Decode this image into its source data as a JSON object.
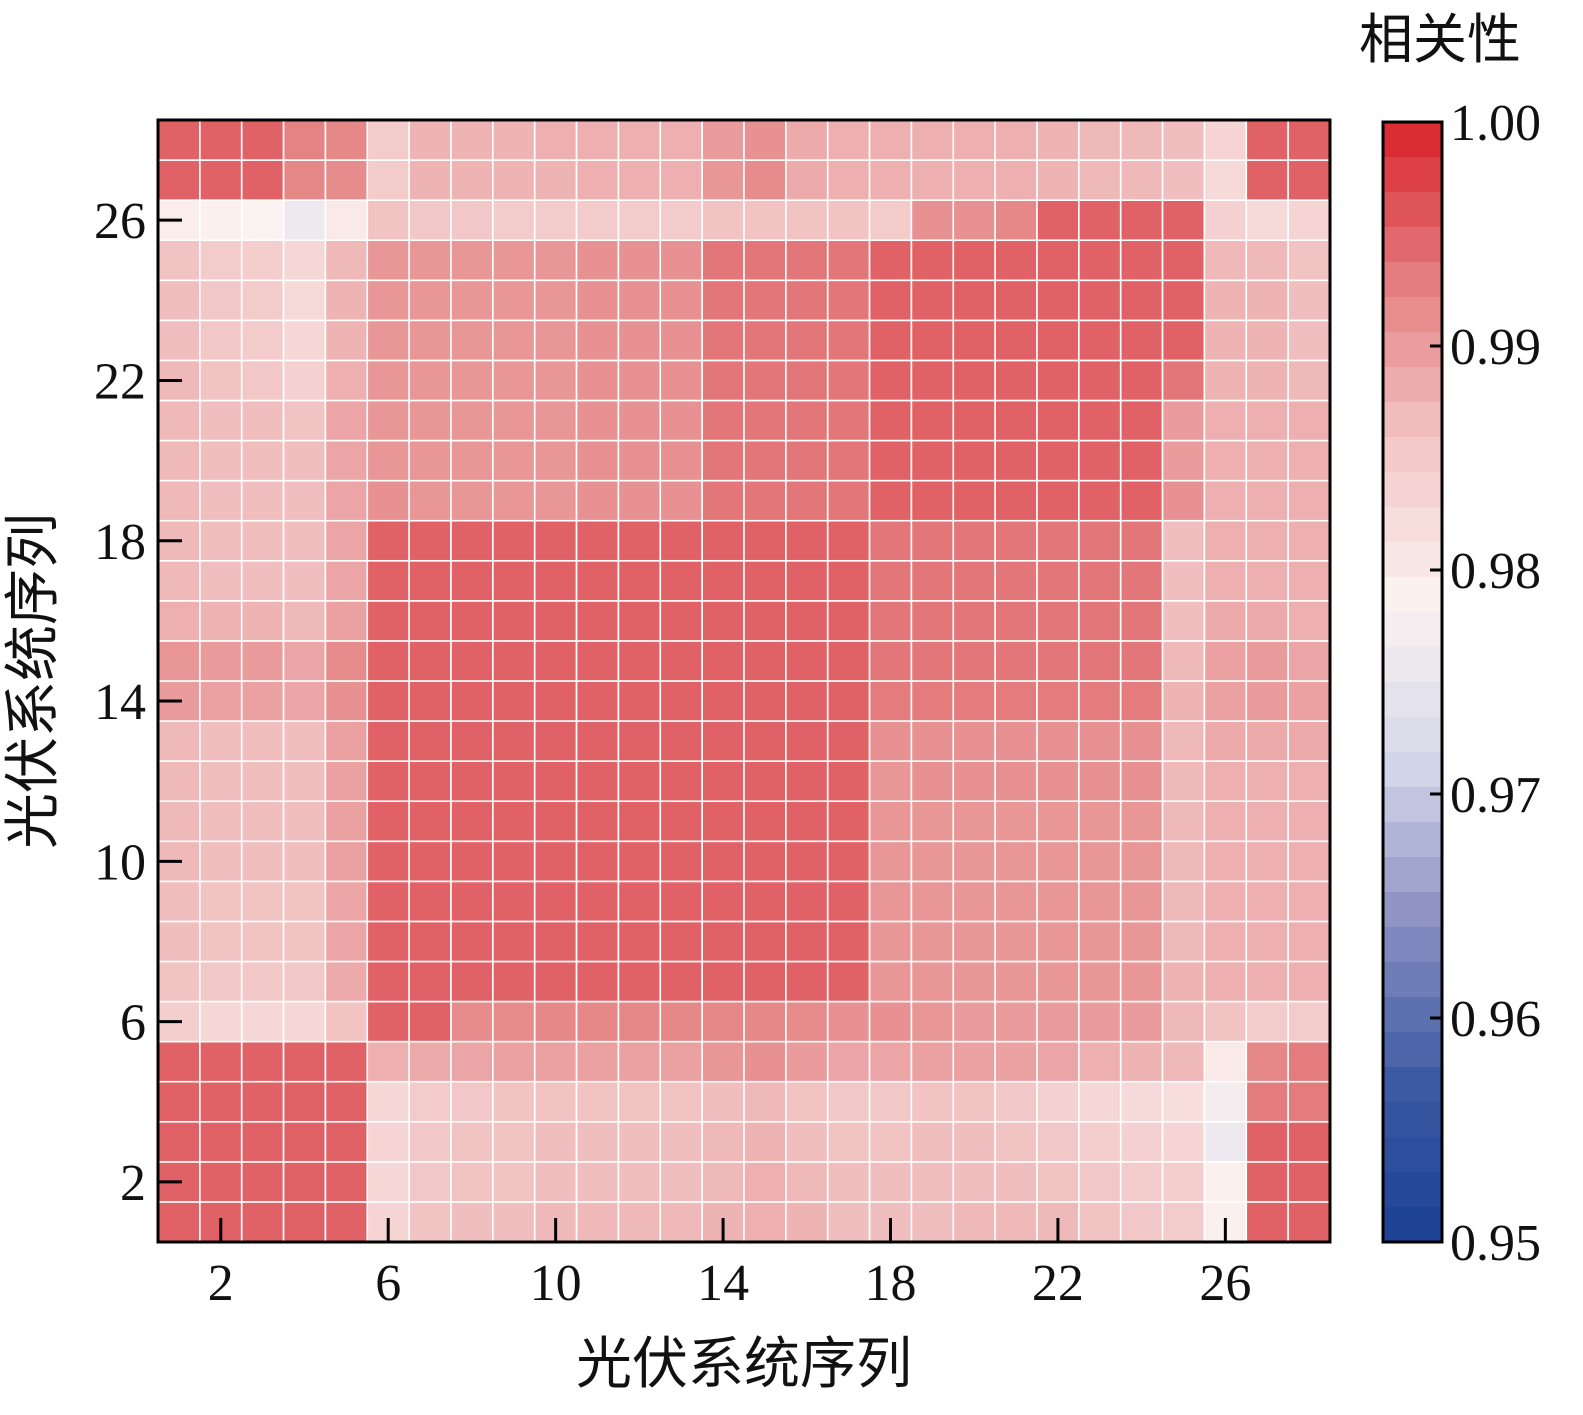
{
  "chart_data": {
    "type": "heatmap",
    "title": "",
    "xlabel": "光伏系统序列",
    "ylabel": "光伏系统序列",
    "x_ticks": [
      "2",
      "6",
      "10",
      "14",
      "18",
      "22",
      "26"
    ],
    "y_ticks": [
      "2",
      "6",
      "10",
      "14",
      "18",
      "22",
      "26"
    ],
    "x_tick_values": [
      2,
      6,
      10,
      14,
      18,
      22,
      26
    ],
    "y_tick_values": [
      2,
      6,
      10,
      14,
      18,
      22,
      26
    ],
    "n": 28,
    "values": [
      [
        0.995,
        0.995,
        0.995,
        0.995,
        0.995,
        0.9835,
        0.986,
        0.9865,
        0.9865,
        0.987,
        0.987,
        0.987,
        0.987,
        0.9875,
        0.988,
        0.9875,
        0.9865,
        0.9865,
        0.9865,
        0.987,
        0.987,
        0.987,
        0.986,
        0.9855,
        0.985,
        0.979,
        0.995,
        0.995
      ],
      [
        0.995,
        0.995,
        0.995,
        0.995,
        0.995,
        0.983,
        0.9855,
        0.986,
        0.986,
        0.9865,
        0.9865,
        0.9865,
        0.9865,
        0.987,
        0.988,
        0.987,
        0.9865,
        0.9865,
        0.9865,
        0.9865,
        0.9865,
        0.986,
        0.9855,
        0.985,
        0.9845,
        0.979,
        0.995,
        0.995
      ],
      [
        0.995,
        0.995,
        0.995,
        0.995,
        0.995,
        0.9835,
        0.9855,
        0.986,
        0.986,
        0.9865,
        0.9865,
        0.9865,
        0.9865,
        0.987,
        0.9875,
        0.9865,
        0.986,
        0.986,
        0.9865,
        0.9865,
        0.986,
        0.9855,
        0.9845,
        0.984,
        0.9835,
        0.976,
        0.995,
        0.995
      ],
      [
        0.995,
        0.995,
        0.995,
        0.995,
        0.995,
        0.983,
        0.985,
        0.9855,
        0.986,
        0.986,
        0.986,
        0.986,
        0.986,
        0.9865,
        0.987,
        0.986,
        0.9855,
        0.9855,
        0.986,
        0.986,
        0.9855,
        0.984,
        0.983,
        0.9825,
        0.982,
        0.977,
        0.993,
        0.993
      ],
      [
        0.995,
        0.995,
        0.995,
        0.995,
        0.995,
        0.988,
        0.9885,
        0.989,
        0.9895,
        0.9895,
        0.9895,
        0.9895,
        0.9895,
        0.9905,
        0.991,
        0.99,
        0.989,
        0.989,
        0.9895,
        0.9895,
        0.9895,
        0.989,
        0.988,
        0.9875,
        0.987,
        0.98,
        0.992,
        0.993
      ],
      [
        0.9845,
        0.983,
        0.983,
        0.983,
        0.986,
        0.995,
        0.995,
        0.9915,
        0.9915,
        0.992,
        0.992,
        0.992,
        0.992,
        0.992,
        0.992,
        0.9915,
        0.991,
        0.991,
        0.9905,
        0.99,
        0.99,
        0.99,
        0.99,
        0.99,
        0.987,
        0.986,
        0.985,
        0.985
      ],
      [
        0.986,
        0.9855,
        0.9855,
        0.9855,
        0.9885,
        0.995,
        0.995,
        0.995,
        0.995,
        0.995,
        0.995,
        0.995,
        0.995,
        0.995,
        0.995,
        0.995,
        0.995,
        0.9905,
        0.9905,
        0.9905,
        0.9905,
        0.9905,
        0.9905,
        0.9905,
        0.9875,
        0.988,
        0.988,
        0.988
      ],
      [
        0.9865,
        0.986,
        0.986,
        0.986,
        0.989,
        0.995,
        0.995,
        0.995,
        0.995,
        0.995,
        0.995,
        0.995,
        0.995,
        0.995,
        0.995,
        0.995,
        0.995,
        0.9905,
        0.9905,
        0.9905,
        0.9905,
        0.9905,
        0.9905,
        0.9905,
        0.987,
        0.988,
        0.988,
        0.988
      ],
      [
        0.9865,
        0.986,
        0.986,
        0.986,
        0.989,
        0.995,
        0.995,
        0.995,
        0.995,
        0.995,
        0.995,
        0.995,
        0.995,
        0.995,
        0.995,
        0.995,
        0.995,
        0.9905,
        0.9905,
        0.9905,
        0.9905,
        0.9905,
        0.9905,
        0.9905,
        0.987,
        0.988,
        0.988,
        0.988
      ],
      [
        0.987,
        0.9865,
        0.9865,
        0.9865,
        0.9895,
        0.995,
        0.995,
        0.995,
        0.995,
        0.995,
        0.995,
        0.995,
        0.995,
        0.995,
        0.995,
        0.995,
        0.995,
        0.9905,
        0.9905,
        0.9905,
        0.9905,
        0.9905,
        0.9905,
        0.9905,
        0.987,
        0.988,
        0.988,
        0.988
      ],
      [
        0.987,
        0.9865,
        0.9865,
        0.9865,
        0.9895,
        0.995,
        0.995,
        0.995,
        0.995,
        0.995,
        0.995,
        0.995,
        0.995,
        0.995,
        0.995,
        0.995,
        0.995,
        0.9905,
        0.9905,
        0.9905,
        0.9905,
        0.9905,
        0.9905,
        0.9905,
        0.987,
        0.988,
        0.988,
        0.988
      ],
      [
        0.987,
        0.9865,
        0.9865,
        0.9865,
        0.9895,
        0.995,
        0.995,
        0.995,
        0.995,
        0.995,
        0.995,
        0.995,
        0.995,
        0.995,
        0.995,
        0.995,
        0.995,
        0.9905,
        0.991,
        0.991,
        0.991,
        0.991,
        0.991,
        0.991,
        0.987,
        0.988,
        0.988,
        0.988
      ],
      [
        0.987,
        0.9865,
        0.9865,
        0.9865,
        0.9895,
        0.995,
        0.995,
        0.995,
        0.995,
        0.995,
        0.995,
        0.995,
        0.995,
        0.995,
        0.995,
        0.995,
        0.995,
        0.991,
        0.991,
        0.991,
        0.991,
        0.991,
        0.991,
        0.991,
        0.987,
        0.9885,
        0.9885,
        0.9885
      ],
      [
        0.99,
        0.9895,
        0.9895,
        0.989,
        0.991,
        0.995,
        0.995,
        0.995,
        0.995,
        0.995,
        0.995,
        0.995,
        0.995,
        0.995,
        0.995,
        0.995,
        0.995,
        0.993,
        0.993,
        0.993,
        0.993,
        0.993,
        0.993,
        0.993,
        0.9875,
        0.9895,
        0.99,
        0.9895
      ],
      [
        0.9905,
        0.99,
        0.99,
        0.989,
        0.9915,
        0.995,
        0.995,
        0.995,
        0.995,
        0.995,
        0.995,
        0.995,
        0.995,
        0.995,
        0.995,
        0.995,
        0.995,
        0.9935,
        0.9935,
        0.9935,
        0.9935,
        0.9935,
        0.9935,
        0.9935,
        0.987,
        0.9895,
        0.99,
        0.989
      ],
      [
        0.988,
        0.9875,
        0.9875,
        0.987,
        0.9895,
        0.995,
        0.995,
        0.995,
        0.995,
        0.995,
        0.995,
        0.995,
        0.995,
        0.995,
        0.995,
        0.995,
        0.995,
        0.9935,
        0.9935,
        0.9935,
        0.9935,
        0.9935,
        0.9935,
        0.9935,
        0.9865,
        0.9885,
        0.9885,
        0.988
      ],
      [
        0.987,
        0.9865,
        0.9865,
        0.9865,
        0.989,
        0.995,
        0.995,
        0.995,
        0.995,
        0.995,
        0.995,
        0.995,
        0.995,
        0.995,
        0.995,
        0.995,
        0.995,
        0.9935,
        0.9935,
        0.9935,
        0.9935,
        0.9935,
        0.9935,
        0.9935,
        0.9865,
        0.988,
        0.988,
        0.988
      ],
      [
        0.987,
        0.9865,
        0.9865,
        0.9865,
        0.989,
        0.995,
        0.995,
        0.995,
        0.995,
        0.995,
        0.995,
        0.995,
        0.995,
        0.995,
        0.995,
        0.995,
        0.995,
        0.9935,
        0.9935,
        0.9935,
        0.9935,
        0.9935,
        0.9935,
        0.9935,
        0.9865,
        0.988,
        0.988,
        0.988
      ],
      [
        0.987,
        0.9865,
        0.9865,
        0.9865,
        0.989,
        0.991,
        0.9905,
        0.9905,
        0.9905,
        0.9905,
        0.991,
        0.991,
        0.991,
        0.9935,
        0.9935,
        0.9935,
        0.9935,
        0.995,
        0.995,
        0.995,
        0.995,
        0.995,
        0.995,
        0.995,
        0.991,
        0.988,
        0.988,
        0.988
      ],
      [
        0.987,
        0.9865,
        0.9865,
        0.9865,
        0.989,
        0.9905,
        0.9905,
        0.9905,
        0.9905,
        0.9905,
        0.991,
        0.991,
        0.991,
        0.9935,
        0.9935,
        0.9935,
        0.9935,
        0.995,
        0.995,
        0.995,
        0.995,
        0.995,
        0.995,
        0.995,
        0.99,
        0.988,
        0.988,
        0.988
      ],
      [
        0.987,
        0.9865,
        0.9865,
        0.986,
        0.989,
        0.9905,
        0.9905,
        0.9905,
        0.9905,
        0.9905,
        0.991,
        0.991,
        0.991,
        0.9935,
        0.9935,
        0.9935,
        0.9935,
        0.995,
        0.995,
        0.995,
        0.995,
        0.995,
        0.995,
        0.995,
        0.99,
        0.988,
        0.988,
        0.988
      ],
      [
        0.987,
        0.986,
        0.9855,
        0.984,
        0.988,
        0.9905,
        0.9905,
        0.9905,
        0.9905,
        0.9905,
        0.991,
        0.991,
        0.991,
        0.9935,
        0.9935,
        0.9935,
        0.9935,
        0.995,
        0.995,
        0.995,
        0.995,
        0.995,
        0.995,
        0.995,
        0.9935,
        0.9875,
        0.9875,
        0.987
      ],
      [
        0.9865,
        0.9855,
        0.985,
        0.983,
        0.9875,
        0.9905,
        0.9905,
        0.9905,
        0.9905,
        0.9905,
        0.991,
        0.991,
        0.991,
        0.9935,
        0.9935,
        0.9935,
        0.9935,
        0.995,
        0.995,
        0.995,
        0.995,
        0.995,
        0.995,
        0.995,
        0.995,
        0.9875,
        0.9875,
        0.9865
      ],
      [
        0.9865,
        0.9855,
        0.985,
        0.9825,
        0.9875,
        0.9905,
        0.9905,
        0.9905,
        0.9905,
        0.9905,
        0.991,
        0.991,
        0.991,
        0.9935,
        0.9935,
        0.9935,
        0.9935,
        0.995,
        0.995,
        0.995,
        0.995,
        0.995,
        0.995,
        0.995,
        0.995,
        0.9875,
        0.9875,
        0.9865
      ],
      [
        0.986,
        0.985,
        0.9845,
        0.983,
        0.987,
        0.9905,
        0.9905,
        0.9905,
        0.9905,
        0.9905,
        0.991,
        0.991,
        0.991,
        0.9935,
        0.9935,
        0.9935,
        0.9935,
        0.995,
        0.995,
        0.995,
        0.995,
        0.995,
        0.995,
        0.995,
        0.995,
        0.987,
        0.987,
        0.986
      ],
      [
        0.9795,
        0.979,
        0.9785,
        0.976,
        0.98,
        0.986,
        0.9855,
        0.9855,
        0.985,
        0.985,
        0.985,
        0.985,
        0.985,
        0.986,
        0.986,
        0.986,
        0.986,
        0.985,
        0.991,
        0.991,
        0.992,
        0.995,
        0.995,
        0.995,
        0.995,
        0.984,
        0.9825,
        0.9835
      ],
      [
        0.995,
        0.995,
        0.995,
        0.992,
        0.9915,
        0.985,
        0.9875,
        0.9875,
        0.9875,
        0.9875,
        0.988,
        0.988,
        0.988,
        0.9905,
        0.9915,
        0.9885,
        0.988,
        0.988,
        0.988,
        0.988,
        0.988,
        0.9875,
        0.987,
        0.987,
        0.9865,
        0.9825,
        0.995,
        0.995
      ],
      [
        0.995,
        0.995,
        0.995,
        0.9925,
        0.992,
        0.985,
        0.9875,
        0.9875,
        0.9875,
        0.988,
        0.988,
        0.988,
        0.988,
        0.99,
        0.991,
        0.9885,
        0.988,
        0.988,
        0.988,
        0.988,
        0.988,
        0.9875,
        0.987,
        0.987,
        0.9865,
        0.9835,
        0.995,
        0.995
      ]
    ]
  },
  "colorbar": {
    "title": "相关性",
    "min": 0.95,
    "max": 1.0,
    "tick_labels": [
      "1.00",
      "0.99",
      "0.98",
      "0.97",
      "0.96",
      "0.95"
    ],
    "tick_values": [
      1.0,
      0.99,
      0.98,
      0.97,
      0.96,
      0.95
    ],
    "colors": [
      "#1a3f94",
      "#3d5aa3",
      "#8a8fc2",
      "#d6d8ea",
      "#fbf3f1",
      "#f2c6c6",
      "#e47e80",
      "#d9222a"
    ]
  }
}
